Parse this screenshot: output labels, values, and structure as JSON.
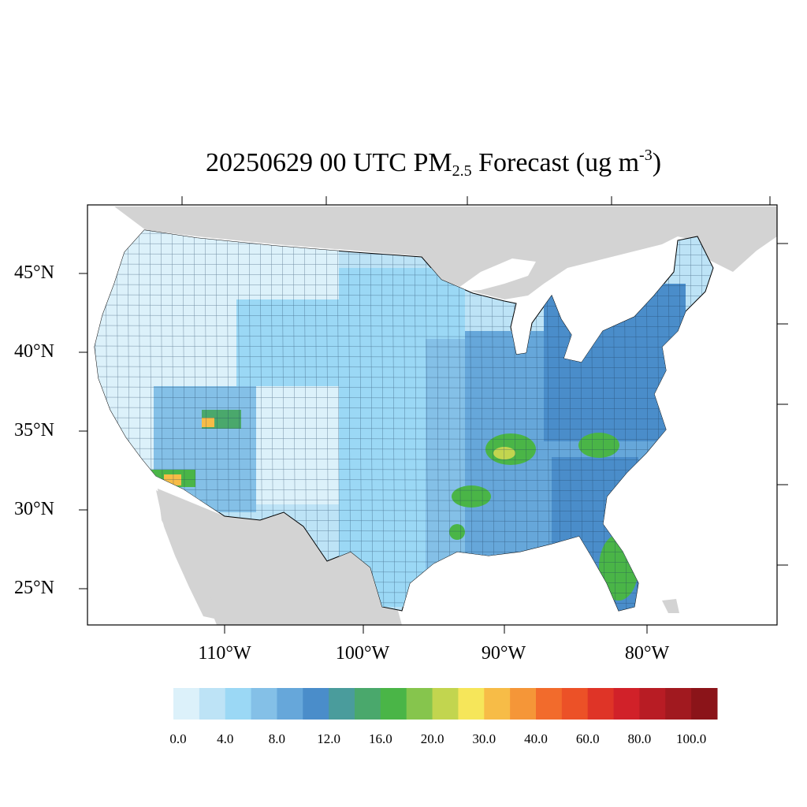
{
  "title": {
    "prefix": "20250629 00 UTC PM",
    "subscript": "2.5",
    "middle": " Forecast (ug m",
    "superscript": "-3",
    "suffix": ")"
  },
  "latitude_labels": [
    "45°N",
    "40°N",
    "35°N",
    "30°N",
    "25°N"
  ],
  "longitude_labels": [
    "110°W",
    "100°W",
    "90°W",
    "80°W"
  ],
  "colorbar": {
    "labels": [
      "0.0",
      "4.0",
      "8.0",
      "12.0",
      "16.0",
      "20.0",
      "30.0",
      "40.0",
      "60.0",
      "80.0",
      "100.0"
    ],
    "colors": [
      "#dcf1fa",
      "#bde3f6",
      "#9bd8f5",
      "#84c0e7",
      "#66a7da",
      "#4a8dca",
      "#4a9c9c",
      "#4aa86c",
      "#4ab547",
      "#86c54d",
      "#c2d54f",
      "#f6e65a",
      "#f7bc47",
      "#f59638",
      "#f26b2c",
      "#ec5127",
      "#df3427",
      "#d12129",
      "#b81c24",
      "#a1191f",
      "#8b1419"
    ]
  },
  "map_colors": {
    "ocean": "#ffffff",
    "land_outside": "#d3d3d3",
    "border": "#000000"
  }
}
